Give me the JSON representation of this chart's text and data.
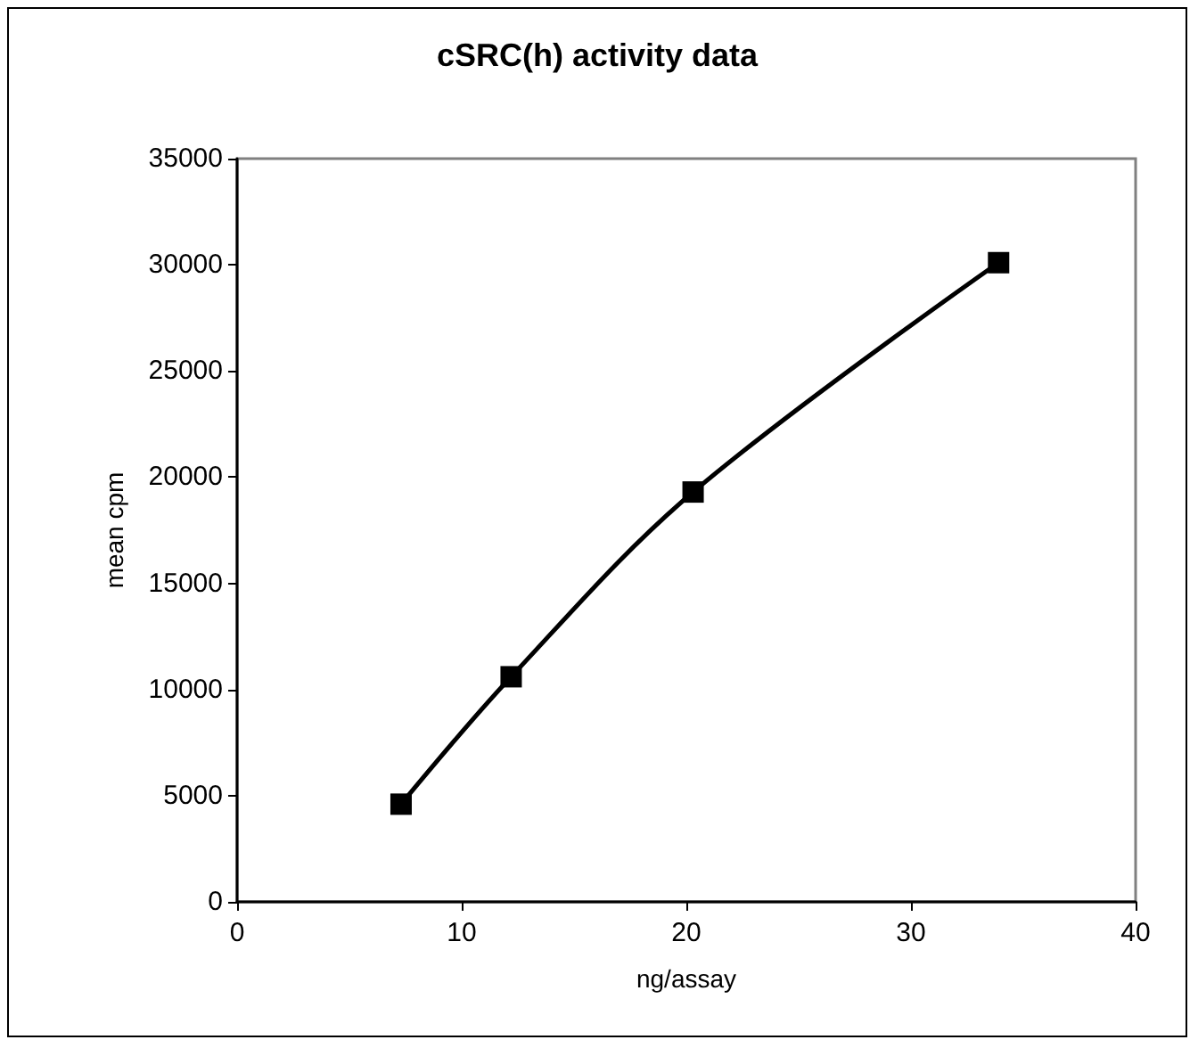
{
  "chart_data": {
    "type": "line",
    "title": "cSRC(h) activity data",
    "xlabel": "ng/assay",
    "ylabel": "mean cpm",
    "x": [
      7.3,
      12.2,
      20.3,
      33.9
    ],
    "series": [
      {
        "color": "#000000",
        "values": [
          4600,
          10600,
          19300,
          30100
        ]
      }
    ],
    "xlim": [
      0,
      40
    ],
    "xticks": [
      0,
      10,
      20,
      30,
      40
    ],
    "ylim": [
      0,
      35000
    ],
    "yticks": [
      0,
      5000,
      10000,
      15000,
      20000,
      25000,
      30000,
      35000
    ],
    "grid": false,
    "marker": "square",
    "line_style": "solid"
  }
}
